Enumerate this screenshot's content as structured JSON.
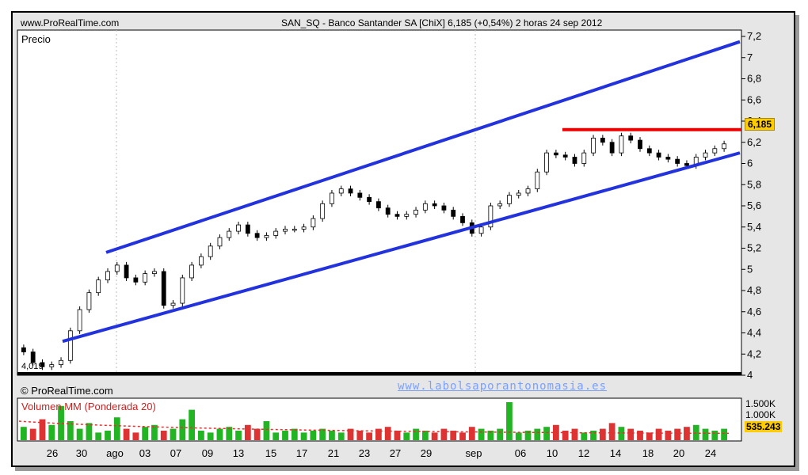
{
  "header": {
    "site": "www.ProRealTime.com",
    "title": "SAN_SQ - Banco Santander SA [ChiX]   6,185 (+0,54%)   2 horas  24 sep 2012"
  },
  "panel_labels": {
    "price": "Precio",
    "copyright": "© ProRealTime.com",
    "watermark": "www.labolsaporantonomasia.es",
    "marker": "4,019"
  },
  "chart_data": [
    {
      "type": "candlestick",
      "title": "Precio",
      "ylim": [
        4.0,
        7.2
      ],
      "y_ticks": [
        "7,2",
        "7",
        "6,8",
        "6,6",
        "6,4",
        "6,2",
        "6",
        "5,8",
        "5,6",
        "5,4",
        "5,2",
        "5",
        "4,8",
        "4,6",
        "4,4",
        "4,2",
        "4"
      ],
      "y_tick_values": [
        7.2,
        7.0,
        6.8,
        6.6,
        6.4,
        6.2,
        6.0,
        5.8,
        5.6,
        5.4,
        5.2,
        5.0,
        4.8,
        4.6,
        4.4,
        4.2,
        4.0
      ],
      "last_price": "6,185",
      "last_value": 6.185,
      "x_ticks": [
        "26",
        "30",
        "ago",
        "03",
        "07",
        "09",
        "13",
        "15",
        "17",
        "21",
        "23",
        "27",
        "29",
        "sep",
        "06",
        "10",
        "12",
        "14",
        "18",
        "20",
        "24"
      ],
      "series": [
        {
          "values": [
            4.22,
            4.12,
            4.08,
            4.1,
            4.14,
            4.42,
            4.62,
            4.78,
            4.9,
            4.98,
            5.04,
            4.92,
            4.88,
            4.96,
            4.98,
            4.66,
            4.68,
            4.92,
            5.04,
            5.12,
            5.22,
            5.3,
            5.36,
            5.42,
            5.34,
            5.3,
            5.32,
            5.36,
            5.38,
            5.38,
            5.4,
            5.48,
            5.62,
            5.72,
            5.76,
            5.72,
            5.68,
            5.64,
            5.58,
            5.52,
            5.5,
            5.52,
            5.56,
            5.62,
            5.6,
            5.56,
            5.5,
            5.44,
            5.34,
            5.4,
            5.6,
            5.62,
            5.7,
            5.72,
            5.76,
            5.92,
            6.1,
            6.08,
            6.06,
            6.0,
            6.1,
            6.24,
            6.2,
            6.1,
            6.26,
            6.22,
            6.14,
            6.1,
            6.06,
            6.04,
            6.0,
            5.98,
            6.06,
            6.1,
            6.14,
            6.185
          ]
        }
      ],
      "support_line": {
        "from": [
          0,
          4.32
        ],
        "to": [
          1,
          6.1
        ]
      },
      "resistance_line": {
        "from": [
          0,
          5.16
        ],
        "to": [
          1,
          7.15
        ]
      },
      "horizontal_line": 6.32
    },
    {
      "type": "bar",
      "title": "Volumen MM (Ponderada 20)",
      "y_ticks": [
        "1.500K",
        "1.000K"
      ],
      "last_value": "535.243",
      "values": [
        0.35,
        0.3,
        0.55,
        0.4,
        0.9,
        0.5,
        0.3,
        0.45,
        0.2,
        0.25,
        0.6,
        0.3,
        0.2,
        0.35,
        0.4,
        0.25,
        0.3,
        0.55,
        0.8,
        0.25,
        0.2,
        0.3,
        0.35,
        0.25,
        0.4,
        0.3,
        0.5,
        0.2,
        0.25,
        0.3,
        0.2,
        0.25,
        0.3,
        0.25,
        0.2,
        0.3,
        0.25,
        0.2,
        0.3,
        0.35,
        0.25,
        0.2,
        0.3,
        0.25,
        0.2,
        0.3,
        0.25,
        0.2,
        0.35,
        0.3,
        0.25,
        0.3,
        1.0,
        0.2,
        0.25,
        0.3,
        0.35,
        0.4,
        0.25,
        0.3,
        0.2,
        0.25,
        0.3,
        0.45,
        0.35,
        0.3,
        0.25,
        0.2,
        0.3,
        0.25,
        0.3,
        0.35,
        0.4,
        0.3,
        0.25,
        0.3
      ],
      "moving_average_start": 0.5,
      "moving_average_end": 0.18
    }
  ],
  "colors": {
    "channel": "#2233dd",
    "resistance": "#ee0000",
    "up_volume": "#22b422",
    "down_volume": "#dd3333",
    "volume_title": "#cc2222",
    "last_badge": "#ffcc00",
    "watermark": "#7aa0ff"
  }
}
